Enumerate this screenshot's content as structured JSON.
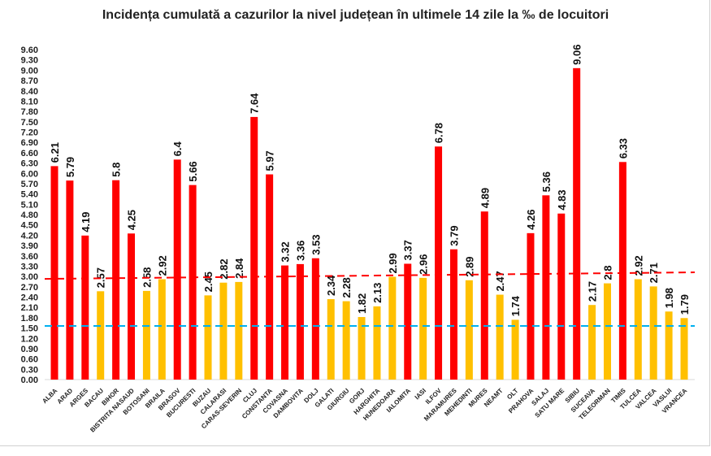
{
  "chart_data": {
    "type": "bar",
    "title": "Incidența cumulată a cazurilor la nivel județean în ultimele 14 zile la ‰ de locuitori",
    "xlabel": "",
    "ylabel": "",
    "ylim": [
      0,
      9.6
    ],
    "ytick_step": 0.3,
    "grid": false,
    "colors": {
      "above": "#ff0000",
      "below": "#ffc000",
      "threshold": 3.0,
      "trend_line": "#ff0000",
      "reference_line": "#00b0f0"
    },
    "categories": [
      "ALBA",
      "ARAD",
      "ARGES",
      "BACAU",
      "BIHOR",
      "BISTRITA NASAUD",
      "BOTOSANI",
      "BRAILA",
      "BRASOV",
      "BUCURESTI",
      "BUZAU",
      "CALARASI",
      "CARAS-SEVERIN",
      "CLUJ",
      "CONSTANTA",
      "COVASNA",
      "DAMBOVITA",
      "DOLJ",
      "GALATI",
      "GIURGIU",
      "GORJ",
      "HARGHITA",
      "HUNEDOARA",
      "IALOMITA",
      "IASI",
      "ILFOV",
      "MARAMURES",
      "MEHEDINTI",
      "MURES",
      "NEAMT",
      "OLT",
      "PRAHOVA",
      "SALAJ",
      "SATU MARE",
      "SIBIU",
      "SUCEAVA",
      "TELEORMAN",
      "TIMIS",
      "TULCEA",
      "VALCEA",
      "VASLUI",
      "VRANCEA"
    ],
    "values": [
      6.21,
      5.79,
      4.19,
      2.57,
      5.8,
      4.25,
      2.58,
      2.92,
      6.4,
      5.66,
      2.45,
      2.82,
      2.84,
      7.64,
      5.97,
      3.32,
      3.36,
      3.53,
      2.34,
      2.28,
      1.82,
      2.13,
      2.99,
      3.37,
      2.96,
      6.78,
      3.79,
      2.89,
      4.89,
      2.47,
      1.74,
      4.26,
      5.36,
      4.83,
      9.06,
      2.17,
      2.8,
      6.33,
      2.92,
      2.71,
      1.98,
      1.79
    ],
    "trend_line": {
      "start": 2.93,
      "end": 3.12,
      "style": "dashed"
    },
    "reference_line": {
      "value": 1.56,
      "style": "dashed"
    }
  }
}
